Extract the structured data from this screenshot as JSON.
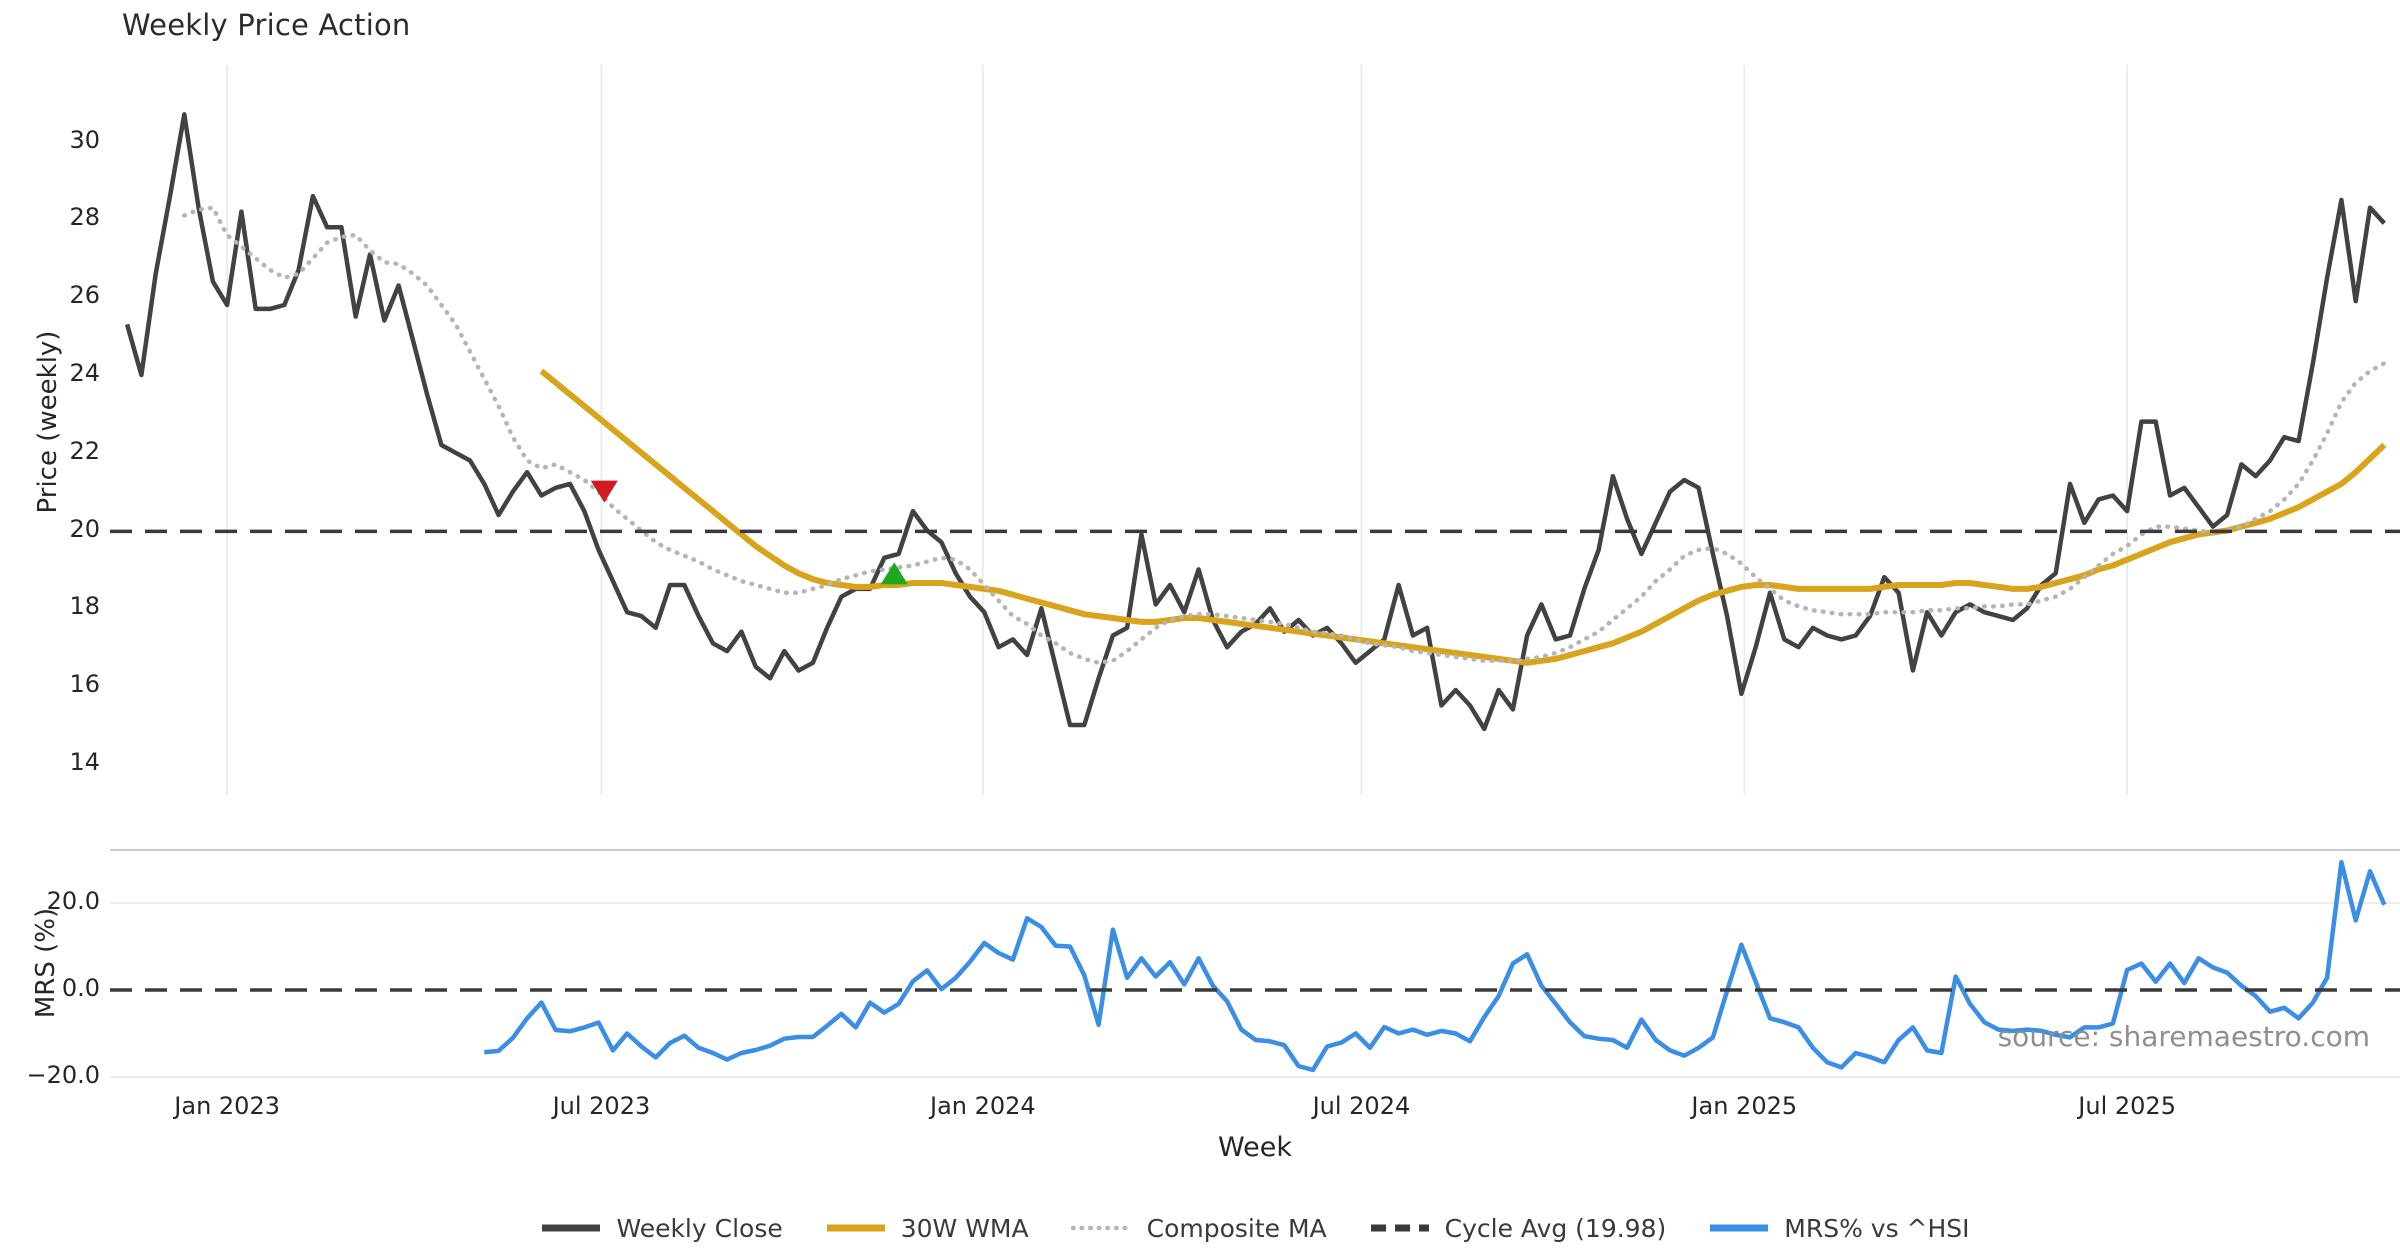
{
  "title": "Weekly Price Action",
  "source_note": "source: sharemaestro.com",
  "colors": {
    "close": "#424242",
    "wma": "#d9a41b",
    "composite": "#b5b5b5",
    "cycle_avg": "#3a3a3a",
    "mrs": "#3a8ee6",
    "sell_marker": "#d01c1c",
    "buy_marker": "#1ea81e",
    "grid": "#e8e8e8",
    "grid_soft": "#ececec",
    "divider": "#cbcbcb",
    "text": "#262626",
    "muted": "#8f8f8f"
  },
  "legend": [
    {
      "label": "Weekly Close",
      "color": "#424242",
      "style": "solid"
    },
    {
      "label": "30W WMA",
      "color": "#d9a41b",
      "style": "solid"
    },
    {
      "label": "Composite MA",
      "color": "#b5b5b5",
      "style": "dotted"
    },
    {
      "label": "Cycle Avg (19.98)",
      "color": "#3a3a3a",
      "style": "dashed"
    },
    {
      "label": "MRS% vs ^HSI",
      "color": "#3a8ee6",
      "style": "solid"
    }
  ],
  "chart_data": [
    {
      "type": "line",
      "panel": "price",
      "title": "Weekly Price Action",
      "ylabel": "Price (weekly)",
      "xlabel": "Week",
      "x_unit": "week_index_from_first_data_point",
      "xlim": [
        -1.2,
        159.1
      ],
      "ylim": [
        13.2,
        31.97
      ],
      "grid": "x",
      "draw_x_tick_labels": false,
      "y_ticks": [
        {
          "value": 30,
          "label": "30"
        },
        {
          "value": 28,
          "label": "28"
        },
        {
          "value": 26,
          "label": "26"
        },
        {
          "value": 24,
          "label": "24"
        },
        {
          "value": 22,
          "label": "22"
        },
        {
          "value": 20,
          "label": "20"
        },
        {
          "value": 18,
          "label": "18"
        },
        {
          "value": 16,
          "label": "16"
        },
        {
          "value": 14,
          "label": "14"
        }
      ],
      "x_ticks": [
        {
          "week": 7,
          "label": "Jan 2023"
        },
        {
          "week": 33.2,
          "label": "Jul 2023"
        },
        {
          "week": 59.9,
          "label": "Jan 2024"
        },
        {
          "week": 86.4,
          "label": "Jul 2024"
        },
        {
          "week": 113.2,
          "label": "Jan 2025"
        },
        {
          "week": 140,
          "label": "Jul 2025"
        }
      ],
      "cycle_avg_value": 19.98,
      "series": [
        {
          "name": "Weekly Close",
          "color": "#424242",
          "style": "solid",
          "width": 4.5,
          "start_week": 0,
          "values": [
            25.3,
            24.0,
            26.6,
            28.6,
            30.7,
            28.3,
            26.4,
            25.8,
            28.2,
            25.7,
            25.7,
            25.8,
            26.7,
            28.6,
            27.8,
            27.8,
            25.5,
            27.1,
            25.4,
            26.3,
            24.9,
            23.5,
            22.2,
            22.0,
            21.8,
            21.2,
            20.4,
            21.0,
            21.5,
            20.9,
            21.1,
            21.2,
            20.5,
            19.5,
            18.7,
            17.9,
            17.8,
            17.5,
            18.6,
            18.6,
            17.8,
            17.1,
            16.9,
            17.4,
            16.5,
            16.2,
            16.9,
            16.4,
            16.6,
            17.5,
            18.3,
            18.5,
            18.5,
            19.3,
            19.4,
            20.5,
            20.0,
            19.7,
            18.9,
            18.3,
            17.9,
            17.0,
            17.2,
            16.8,
            18.0,
            16.5,
            15.0,
            15.0,
            16.2,
            17.3,
            17.5,
            19.9,
            18.1,
            18.6,
            17.9,
            19.0,
            17.7,
            17.0,
            17.4,
            17.6,
            18.0,
            17.4,
            17.7,
            17.3,
            17.5,
            17.1,
            16.6,
            16.9,
            17.2,
            18.6,
            17.3,
            17.5,
            15.5,
            15.9,
            15.5,
            14.9,
            15.9,
            15.4,
            17.3,
            18.1,
            17.2,
            17.3,
            18.5,
            19.5,
            21.4,
            20.3,
            19.4,
            20.2,
            21.0,
            21.3,
            21.1,
            19.4,
            17.8,
            15.8,
            17.0,
            18.4,
            17.2,
            17.0,
            17.5,
            17.3,
            17.2,
            17.3,
            17.8,
            18.8,
            18.4,
            16.4,
            17.9,
            17.3,
            17.9,
            18.1,
            17.9,
            17.8,
            17.7,
            18.0,
            18.6,
            18.9,
            21.2,
            20.2,
            20.8,
            20.9,
            20.5,
            22.8,
            22.8,
            20.9,
            21.1,
            20.6,
            20.1,
            20.4,
            21.7,
            21.4,
            21.8,
            22.4,
            22.3,
            24.3,
            26.5,
            28.5,
            25.9,
            28.3,
            27.9
          ]
        },
        {
          "name": "30W WMA",
          "color": "#d9a41b",
          "style": "solid",
          "width": 6,
          "start_week": 29,
          "values": [
            24.1,
            23.8,
            23.5,
            23.2,
            22.9,
            22.6,
            22.3,
            22.0,
            21.7,
            21.4,
            21.1,
            20.8,
            20.5,
            20.2,
            19.9,
            19.6,
            19.35,
            19.1,
            18.9,
            18.75,
            18.65,
            18.6,
            18.55,
            18.55,
            18.6,
            18.6,
            18.65,
            18.65,
            18.65,
            18.6,
            18.55,
            18.5,
            18.45,
            18.35,
            18.25,
            18.15,
            18.05,
            17.95,
            17.85,
            17.8,
            17.75,
            17.7,
            17.65,
            17.65,
            17.7,
            17.75,
            17.75,
            17.7,
            17.65,
            17.6,
            17.55,
            17.5,
            17.45,
            17.4,
            17.35,
            17.3,
            17.25,
            17.2,
            17.15,
            17.1,
            17.05,
            17.0,
            16.95,
            16.9,
            16.85,
            16.8,
            16.75,
            16.7,
            16.65,
            16.6,
            16.65,
            16.7,
            16.8,
            16.9,
            17.0,
            17.1,
            17.25,
            17.4,
            17.6,
            17.8,
            18.0,
            18.2,
            18.35,
            18.45,
            18.55,
            18.6,
            18.6,
            18.55,
            18.5,
            18.5,
            18.5,
            18.5,
            18.5,
            18.5,
            18.55,
            18.6,
            18.6,
            18.6,
            18.6,
            18.65,
            18.65,
            18.6,
            18.55,
            18.5,
            18.5,
            18.55,
            18.65,
            18.75,
            18.85,
            19.0,
            19.1,
            19.25,
            19.4,
            19.55,
            19.7,
            19.8,
            19.9,
            19.95,
            20.0,
            20.1,
            20.2,
            20.3,
            20.45,
            20.6,
            20.8,
            21.0,
            21.2,
            21.5,
            21.85,
            22.2
          ]
        },
        {
          "name": "Composite MA",
          "color": "#b5b5b5",
          "style": "dotted",
          "width": 4.5,
          "start_week": 4,
          "values": [
            28.1,
            28.25,
            28.3,
            27.6,
            27.3,
            27.0,
            26.7,
            26.5,
            26.6,
            27.0,
            27.4,
            27.55,
            27.6,
            27.2,
            26.9,
            26.85,
            26.6,
            26.3,
            25.8,
            25.3,
            24.6,
            23.9,
            23.2,
            22.4,
            21.8,
            21.6,
            21.7,
            21.5,
            21.3,
            21.0,
            20.6,
            20.3,
            20.0,
            19.7,
            19.5,
            19.35,
            19.2,
            19.0,
            18.85,
            18.7,
            18.6,
            18.5,
            18.4,
            18.4,
            18.5,
            18.6,
            18.75,
            18.85,
            18.95,
            19.0,
            19.05,
            19.1,
            19.2,
            19.3,
            19.25,
            19.0,
            18.6,
            18.2,
            17.8,
            17.6,
            17.3,
            17.1,
            16.85,
            16.7,
            16.6,
            16.65,
            16.9,
            17.2,
            17.5,
            17.7,
            17.8,
            17.85,
            17.85,
            17.8,
            17.75,
            17.7,
            17.65,
            17.6,
            17.5,
            17.4,
            17.35,
            17.3,
            17.2,
            17.1,
            17.05,
            17.0,
            16.9,
            16.85,
            16.8,
            16.75,
            16.7,
            16.65,
            16.65,
            16.65,
            16.7,
            16.75,
            16.85,
            17.0,
            17.2,
            17.4,
            17.7,
            18.0,
            18.3,
            18.7,
            19.0,
            19.35,
            19.5,
            19.55,
            19.4,
            19.15,
            18.8,
            18.5,
            18.2,
            18.05,
            17.95,
            17.9,
            17.85,
            17.85,
            17.85,
            17.9,
            17.9,
            17.9,
            17.95,
            17.95,
            18.0,
            18.0,
            18.05,
            18.05,
            18.1,
            18.1,
            18.2,
            18.3,
            18.5,
            18.8,
            19.1,
            19.4,
            19.6,
            19.9,
            20.1,
            20.1,
            20.05,
            20.0,
            19.95,
            20.0,
            20.1,
            20.3,
            20.5,
            20.8,
            21.2,
            21.8,
            22.5,
            23.3,
            23.8,
            24.1,
            24.3
          ]
        },
        {
          "name": "Cycle Avg (19.98)",
          "color": "#3a3a3a",
          "style": "dashed",
          "width": 3.5,
          "hline": true,
          "y": 19.98
        }
      ],
      "markers": [
        {
          "name": "sell-signal",
          "shape": "triangle-down",
          "color": "#d01c1c",
          "week": 33.4,
          "value": 21.0
        },
        {
          "name": "buy-signal",
          "shape": "triangle-up",
          "color": "#1ea81e",
          "week": 53.7,
          "value": 18.9
        }
      ]
    },
    {
      "type": "line",
      "panel": "mrs",
      "ylabel": "MRS (%)",
      "xlabel": "Week",
      "xlim": [
        -1.2,
        159.1
      ],
      "ylim": [
        -23.0,
        32.2
      ],
      "grid": "y",
      "y_grid_values": [
        20,
        -20
      ],
      "draw_x_tick_labels": true,
      "y_ticks": [
        {
          "value": 20,
          "label": "20.0"
        },
        {
          "value": 0,
          "label": "0.0"
        },
        {
          "value": -20,
          "label": "−20.0"
        }
      ],
      "x_ticks": [
        {
          "week": 7,
          "label": "Jan 2023"
        },
        {
          "week": 33.2,
          "label": "Jul 2023"
        },
        {
          "week": 59.9,
          "label": "Jan 2024"
        },
        {
          "week": 86.4,
          "label": "Jul 2024"
        },
        {
          "week": 113.2,
          "label": "Jan 2025"
        },
        {
          "week": 140,
          "label": "Jul 2025"
        }
      ],
      "series": [
        {
          "name": "MRS% vs ^HSI",
          "color": "#3a8ee6",
          "style": "solid",
          "width": 4.5,
          "start_week": 25,
          "values": [
            -14.3,
            -14.0,
            -11.0,
            -6.5,
            -2.9,
            -9.2,
            -9.5,
            -8.6,
            -7.5,
            -13.9,
            -10.0,
            -13.0,
            -15.5,
            -12.2,
            -10.5,
            -13.3,
            -14.5,
            -16.0,
            -14.5,
            -13.8,
            -12.8,
            -11.2,
            -10.8,
            -10.8,
            -8.2,
            -5.5,
            -8.6,
            -2.9,
            -5.2,
            -3.2,
            2.0,
            4.5,
            0.2,
            2.8,
            6.5,
            10.8,
            8.5,
            7.0,
            16.5,
            14.5,
            10.2,
            10.0,
            3.4,
            -8.0,
            13.9,
            2.8,
            7.3,
            3.1,
            6.4,
            1.3,
            7.3,
            1.0,
            -2.6,
            -9.1,
            -11.5,
            -11.8,
            -12.7,
            -17.5,
            -18.4,
            -13.0,
            -12.1,
            -10.0,
            -13.3,
            -8.5,
            -10.0,
            -9.1,
            -10.3,
            -9.4,
            -10.0,
            -11.8,
            -6.2,
            -1.4,
            6.1,
            8.2,
            1.0,
            -3.2,
            -7.4,
            -10.6,
            -11.2,
            -11.5,
            -13.3,
            -6.8,
            -11.5,
            -13.9,
            -15.1,
            -13.3,
            -10.9,
            -0.2,
            10.4,
            1.9,
            -6.5,
            -7.4,
            -8.6,
            -13.3,
            -16.6,
            -17.8,
            -14.5,
            -15.4,
            -16.6,
            -11.5,
            -8.6,
            -13.9,
            -14.5,
            3.1,
            -3.2,
            -7.4,
            -9.1,
            -9.4,
            -9.1,
            -9.4,
            -10.3,
            -10.9,
            -8.6,
            -8.6,
            -7.7,
            4.6,
            6.1,
            1.9,
            6.1,
            1.6,
            7.3,
            5.2,
            4.0,
            1.0,
            -1.4,
            -5.0,
            -4.1,
            -6.5,
            -2.9,
            2.8,
            29.4,
            16.0,
            27.3,
            19.6
          ]
        },
        {
          "name": "zero-line",
          "color": "#3a3a3a",
          "style": "dashed",
          "width": 3.5,
          "hline": true,
          "y": 0
        }
      ]
    }
  ]
}
